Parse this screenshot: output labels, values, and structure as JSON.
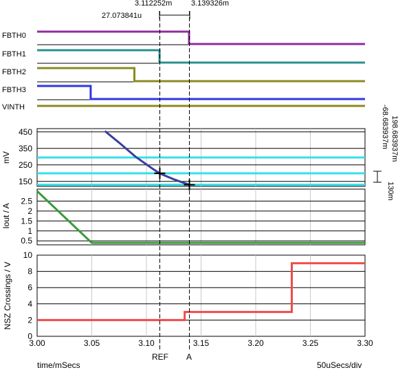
{
  "cursors": {
    "ref_time": "3.112252m",
    "a_time": "3.139326m",
    "delta_time": "27.073841u",
    "ref_label": "REF",
    "a_label": "A",
    "ref_x": 3.112252,
    "a_x": 3.139326,
    "delta_y_upper": "198.683937m",
    "delta_y_lower": "-68.683937m",
    "delta_y_small": "130m"
  },
  "footer": {
    "time_label": "time/mSecs",
    "division": "50uSecs/div"
  },
  "colors": {
    "FBTH0": "#8e2d9b",
    "FBTH1": "#2a8f8f",
    "FBTH2": "#8c8a1f",
    "FBTH3": "#2e36e0",
    "VINTH": "#8c8a1f",
    "mv_curve": "#3b3e9a",
    "mv_reference": "#33e0e8",
    "iout": "#3a9a3a",
    "nsz": "#f04a48"
  },
  "chart_data": [
    {
      "type": "line",
      "title": "",
      "digital_traces": [
        {
          "name": "FBTH0",
          "transitions": [
            [
              3.0,
              1
            ],
            [
              3.139,
              0
            ],
            [
              3.3,
              0
            ]
          ]
        },
        {
          "name": "FBTH1",
          "transitions": [
            [
              3.0,
              1
            ],
            [
              3.112,
              0
            ],
            [
              3.3,
              0
            ]
          ]
        },
        {
          "name": "FBTH2",
          "transitions": [
            [
              3.0,
              1
            ],
            [
              3.089,
              0
            ],
            [
              3.3,
              0
            ]
          ]
        },
        {
          "name": "FBTH3",
          "transitions": [
            [
              3.0,
              1
            ],
            [
              3.049,
              0
            ],
            [
              3.3,
              0
            ]
          ]
        },
        {
          "name": "VINTH",
          "transitions": [
            [
              3.0,
              0
            ],
            [
              3.3,
              0
            ]
          ]
        }
      ],
      "xlim": [
        3.0,
        3.3
      ]
    },
    {
      "type": "line",
      "ylabel": "mV",
      "ylim": [
        120,
        470
      ],
      "yticks": [
        150,
        250,
        350,
        450
      ],
      "xlim": [
        3.0,
        3.3
      ],
      "series": [
        {
          "role": "curve",
          "x": [
            3.062,
            3.075,
            3.09,
            3.105,
            3.112,
            3.125,
            3.139
          ],
          "y": [
            455,
            385,
            300,
            230,
            199,
            163,
            130
          ]
        },
        {
          "role": "ref-line",
          "x": [
            3.0,
            3.3
          ],
          "y": [
            295,
            295
          ]
        },
        {
          "role": "ref-line",
          "x": [
            3.0,
            3.3
          ],
          "y": [
            199,
            199
          ]
        },
        {
          "role": "ref-line",
          "x": [
            3.0,
            3.3
          ],
          "y": [
            130,
            130
          ]
        }
      ]
    },
    {
      "type": "line",
      "ylabel": "Iout / A",
      "ylim": [
        0.3,
        3.1
      ],
      "yticks": [
        0.5,
        1.0,
        1.5,
        2.0,
        2.5
      ],
      "ytick_labels": [
        "0.5",
        "1",
        "1.5",
        "2",
        "2.5"
      ],
      "xlim": [
        3.0,
        3.3
      ],
      "series": [
        {
          "x": [
            3.0,
            3.05,
            3.3
          ],
          "y": [
            3.0,
            0.4,
            0.4
          ]
        }
      ]
    },
    {
      "type": "line",
      "ylabel": "NSZ Crossings / V",
      "ylim": [
        0,
        10
      ],
      "yticks": [
        0,
        2,
        4,
        6,
        8,
        10
      ],
      "xlim": [
        3.0,
        3.3
      ],
      "xticks": [
        3.0,
        3.05,
        3.1,
        3.15,
        3.2,
        3.25,
        3.3
      ],
      "xtick_labels": [
        "3.00",
        "3.05",
        "3.10",
        "3.15",
        "3.20",
        "3.25",
        "3.30"
      ],
      "series": [
        {
          "x": [
            3.0,
            3.135,
            3.135,
            3.233,
            3.233,
            3.3
          ],
          "y": [
            2,
            2,
            3,
            3,
            9,
            9
          ]
        }
      ]
    }
  ]
}
